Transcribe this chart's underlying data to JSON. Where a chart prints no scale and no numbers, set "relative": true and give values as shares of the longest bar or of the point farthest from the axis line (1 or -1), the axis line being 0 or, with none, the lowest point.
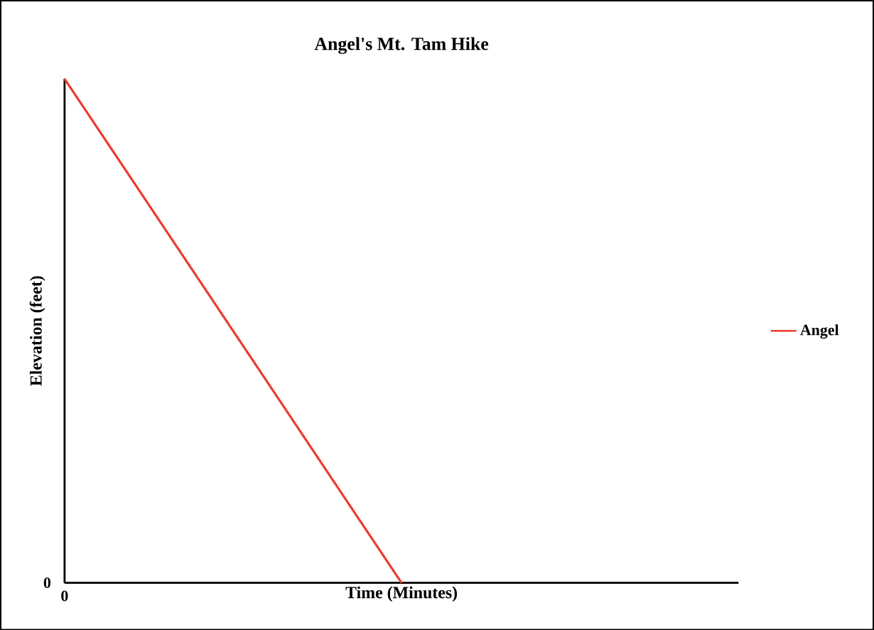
{
  "chart_data": {
    "type": "line",
    "title": "Angel's Mt. Tam Hike",
    "xlabel": "Time (Minutes)",
    "ylabel": "Elevation (feet)",
    "categories": [
      null,
      null,
      null
    ],
    "series": [
      {
        "name": "Angel",
        "color": "#ee3b2a",
        "values": [
          1,
          0,
          null
        ]
      }
    ],
    "relative": true,
    "legend": "right",
    "marker": "none",
    "line_style": "solid",
    "annotations": [
      "0",
      "0"
    ]
  }
}
